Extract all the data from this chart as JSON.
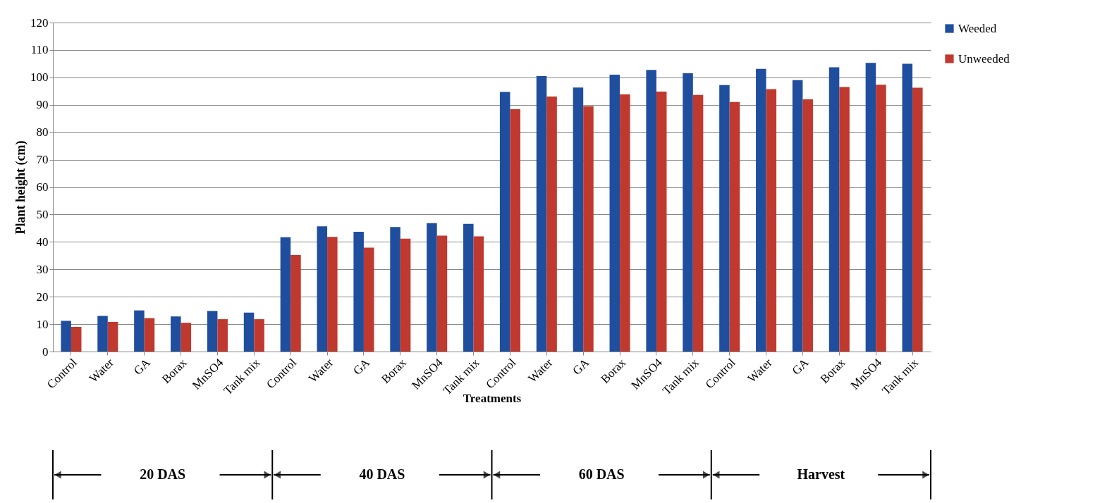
{
  "chart_data": {
    "type": "bar",
    "xlabel": "Treatments",
    "ylabel": "Plant height (cm)",
    "categories": [
      "Control",
      "Water",
      "GA",
      "Borax",
      "MnSO4",
      "Tank mix",
      "Control",
      "Water",
      "GA",
      "Borax",
      "MnSO4",
      "Tank mix",
      "Control",
      "Water",
      "GA",
      "Borax",
      "MnSO4",
      "Tank mix",
      "Control",
      "Water",
      "GA",
      "Borax",
      "MnSO4",
      "Tank mix"
    ],
    "series": [
      {
        "name": "Weeded",
        "color": "#1f4e9e",
        "values": [
          11.2,
          13,
          15,
          12.8,
          14.8,
          14.2,
          41.7,
          45.7,
          43.7,
          45.4,
          46.8,
          46.6,
          94.7,
          100.5,
          96.3,
          101,
          102.7,
          101.5,
          97.2,
          103.1,
          99,
          103.7,
          105.3,
          105
        ]
      },
      {
        "name": "Unweeded",
        "color": "#c0392e",
        "values": [
          9,
          10.8,
          12.2,
          10.5,
          11.8,
          11.8,
          35.2,
          41.8,
          37.9,
          41.2,
          42.3,
          42,
          88.4,
          93,
          89.5,
          93.8,
          94.8,
          93.6,
          91,
          95.7,
          92,
          96.5,
          97.3,
          96.2
        ]
      }
    ],
    "ylim": [
      0,
      120
    ],
    "yticks": [
      0,
      10,
      20,
      30,
      40,
      50,
      60,
      70,
      80,
      90,
      100,
      110,
      120
    ],
    "grid": "y",
    "legend": "right",
    "annotations": [
      "20 DAS",
      "40 DAS",
      "60 DAS",
      "Harvest"
    ]
  }
}
